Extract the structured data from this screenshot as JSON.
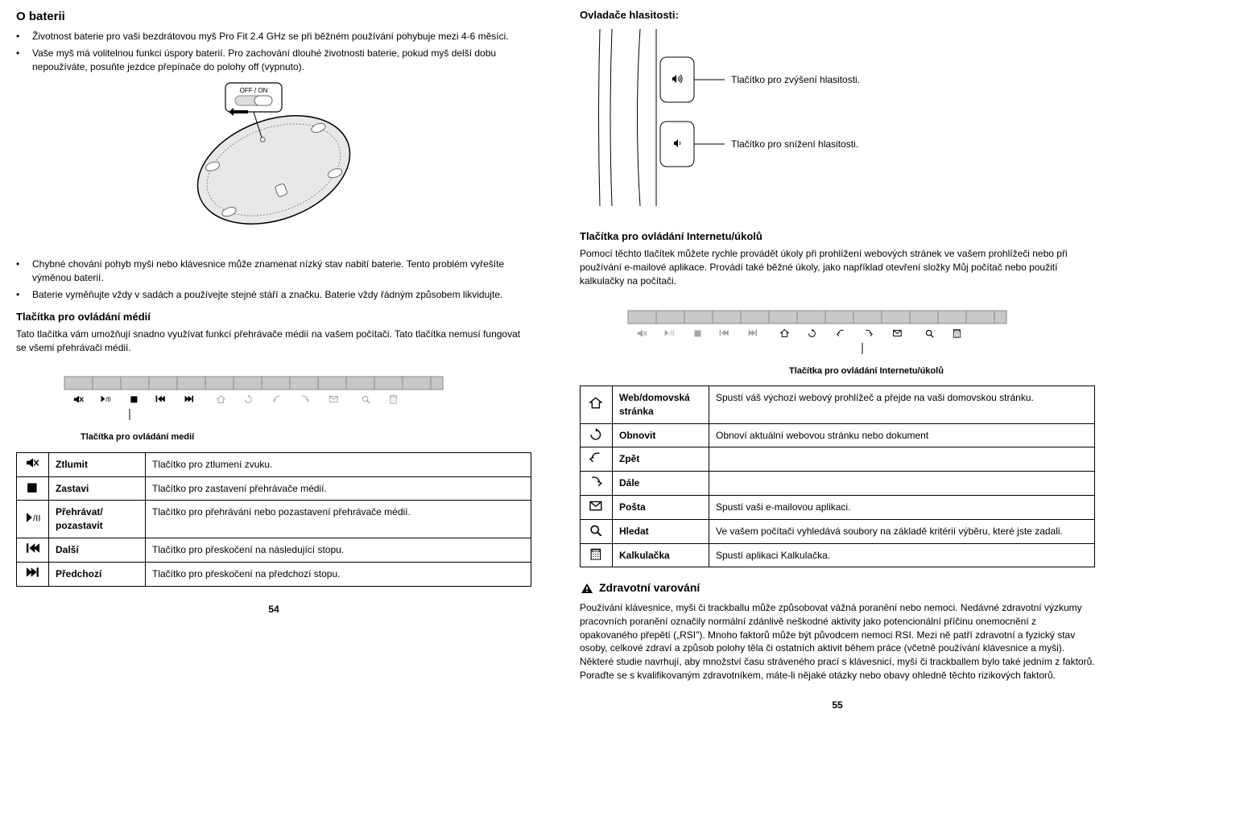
{
  "left": {
    "h_battery": "O baterii",
    "bullets1": [
      "Životnost baterie pro vaši bezdrátovou myš Pro Fit 2.4 GHz se při běžném používání pohybuje mezi 4-6 měsíci.",
      "Vaše myš má volitelnou funkci úspory baterií. Pro zachování dlouhé životnosti baterie, pokud myš delší dobu nepoužíváte, posuňte jezdce přepínače do polohy off (vypnuto)."
    ],
    "switch_label": "OFF / ON",
    "bullets2": [
      "Chybné chování pohyb myši nebo klávesnice může znamenat nízký stav nabití baterie. Tento problém vyřešíte výměnou baterií.",
      "Baterie vyměňujte vždy v sadách a používejte stejné stáří a značku. Baterie vždy řádným způsobem likvidujte."
    ],
    "h_media": "Tlačítka pro ovládání médií",
    "p_media": "Tato tlačítka vám umožňují snadno využívat funkcí přehrávače médií na vašem počítači. Tato tlačítka nemusí fungovat se všemi přehrávači médií.",
    "media_caption": "Tlačítka pro ovládání medií",
    "media_table": [
      {
        "icon": "mute",
        "label": "Ztlumit",
        "desc": "Tlačítko pro ztlumení zvuku."
      },
      {
        "icon": "stop",
        "label": "Zastavi",
        "desc": "Tlačítko pro zastavení přehrávače médií."
      },
      {
        "icon": "play",
        "label": "Přehrávat/ pozastavit",
        "desc": "Tlačítko pro přehrávání nebo pozastavení přehrávače médií."
      },
      {
        "icon": "next",
        "label": "Další",
        "desc": "Tlačítko pro přeskočení na následující stopu."
      },
      {
        "icon": "prev",
        "label": "Předchozí",
        "desc": "Tlačítko pro přeskočení na předchozí stopu."
      }
    ],
    "page": "54"
  },
  "right": {
    "h_volume": "Ovladače hlasitosti:",
    "vol_up": "Tlačítko pro zvýšení hlasitosti.",
    "vol_down": "Tlačítko pro snížení hlasitosti.",
    "h_internet": "Tlačítka pro ovládání Internetu/úkolů",
    "p_internet": "Pomocí těchto tlačítek můžete rychle provádět úkoly při prohlížení webových stránek ve vašem prohlížeči nebo při používání e-mailové aplikace. Provádí také běžné úkoly, jako například otevření složky Můj počítač nebo použití kalkulačky na počítači.",
    "internet_caption": "Tlačítka pro ovládání Internetu/úkolů",
    "internet_table": [
      {
        "icon": "home",
        "label": "Web/domovská stránka",
        "desc": "Spustí váš výchozí webový prohlížeč a přejde na vaši domovskou stránku."
      },
      {
        "icon": "refresh",
        "label": "Obnovit",
        "desc": "Obnoví aktuální webovou stránku nebo dokument"
      },
      {
        "icon": "back",
        "label": "Zpět",
        "desc": ""
      },
      {
        "icon": "forward",
        "label": "Dále",
        "desc": ""
      },
      {
        "icon": "mail",
        "label": "Pošta",
        "desc": "Spustí vaši e-mailovou aplikaci."
      },
      {
        "icon": "search",
        "label": "Hledat",
        "desc": "Ve vašem počítači vyhledává soubory na základě kritérií výběru, které jste zadali."
      },
      {
        "icon": "calc",
        "label": "Kalkulačka",
        "desc": "Spustí aplikaci Kalkulačka."
      }
    ],
    "h_warn": "Zdravotní varování",
    "p_warn": "Používání klávesnice, myši či trackballu může způsobovat vážná poranění nebo nemoci. Nedávné zdravotní výzkumy pracovních poranění označily normální zdánlivě neškodné aktivity jako potencionální příčinu onemocnění z opakovaného přepětí („RSI\"). Mnoho faktorů může být původcem nemoci RSI. Mezi ně patří zdravotní a fyzický stav osoby, celkové zdraví a způsob polohy těla či ostatních aktivit během práce (včetně používání klávesnice a myši). Některé studie navrhují, aby množství času stráveného prací s klávesnicí, myší či trackballem bylo také jedním z faktorů. Poraďte se s kvalifikovaným zdravotníkem, máte-li nějaké otázky nebo obavy ohledně těchto rizikových faktorů.",
    "page": "55"
  },
  "colors": {
    "text": "#000000",
    "bg": "#ffffff",
    "border": "#000000",
    "strip_bg": "#c8c8c8",
    "strip_border": "#888888",
    "mouse_fill": "#e8e8e8"
  }
}
